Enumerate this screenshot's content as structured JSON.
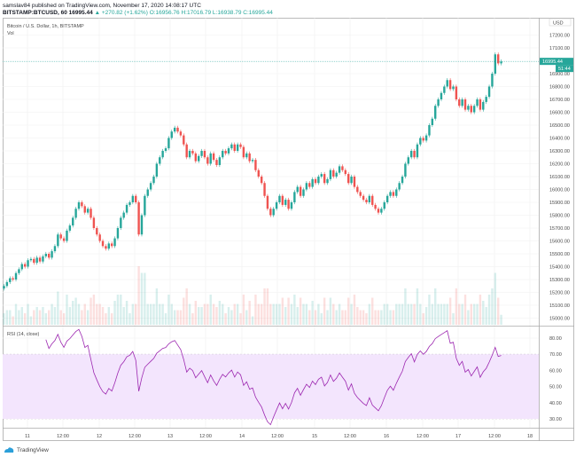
{
  "header": {
    "published": "samslav84 published on TradingView.com, November 17, 2020 14:08:17 UTC",
    "symbol": "BITSTAMP:BTCUSD, 60",
    "last": "16995.44",
    "change": "+270.82 (+1.62%)",
    "open": "O:16956.76",
    "high": "H:17016.79",
    "low": "L:16938.79",
    "close": "C:16995.44"
  },
  "pane_title": "Bitcoin / U.S. Dollar, 1h, BITSTAMP",
  "vol_label": "Vol",
  "rsi_label": "RSI (14, close)",
  "currency": "USD",
  "price_tag": "16995.44",
  "countdown_tag": "51:44",
  "footer_brand": "TradingView",
  "colors": {
    "up": "#26a69a",
    "down": "#ef5350",
    "rsi": "#9c27b0",
    "rsi_band": "#f3e5fd"
  },
  "chart_data": {
    "type": "candlestick",
    "interval": "1h",
    "price_ticks": [
      "17200.00",
      "17100.00",
      "16900.00",
      "16800.00",
      "16700.00",
      "16600.00",
      "16500.00",
      "16400.00",
      "16300.00",
      "16200.00",
      "16100.00",
      "16000.00",
      "15900.00",
      "15800.00",
      "15700.00",
      "15600.00",
      "15500.00",
      "15400.00",
      "15300.00",
      "15200.00",
      "15100.00",
      "15000.00"
    ],
    "rsi_ticks": [
      "80.00",
      "70.00",
      "60.00",
      "50.00",
      "40.00",
      "30.00"
    ],
    "rsi_band": [
      30,
      70
    ],
    "time_ticks": [
      "11",
      "12:00",
      "12",
      "12:00",
      "13",
      "12:00",
      "14",
      "12:00",
      "15",
      "12:00",
      "16",
      "12:00",
      "17",
      "12:00",
      "18"
    ],
    "closes": [
      15250,
      15280,
      15310,
      15300,
      15350,
      15380,
      15420,
      15400,
      15450,
      15460,
      15430,
      15470,
      15440,
      15480,
      15500,
      15470,
      15520,
      15560,
      15650,
      15620,
      15600,
      15680,
      15720,
      15780,
      15850,
      15900,
      15870,
      15820,
      15850,
      15780,
      15700,
      15650,
      15600,
      15560,
      15540,
      15580,
      15560,
      15620,
      15700,
      15780,
      15820,
      15880,
      15900,
      15950,
      15900,
      15650,
      15800,
      15950,
      16000,
      16050,
      16100,
      16200,
      16250,
      16300,
      16320,
      16400,
      16450,
      16480,
      16450,
      16420,
      16350,
      16250,
      16300,
      16280,
      16220,
      16260,
      16300,
      16250,
      16200,
      16280,
      16230,
      16190,
      16250,
      16300,
      16280,
      16320,
      16350,
      16300,
      16350,
      16330,
      16250,
      16280,
      16220,
      16230,
      16150,
      16100,
      16050,
      15950,
      15850,
      15800,
      15850,
      15900,
      15950,
      15880,
      15920,
      15850,
      15900,
      15980,
      16020,
      15950,
      16000,
      16050,
      16020,
      16080,
      16050,
      16100,
      16120,
      16050,
      16080,
      16150,
      16100,
      16130,
      16180,
      16150,
      16120,
      16050,
      16100,
      16020,
      15980,
      15950,
      15920,
      15900,
      15950,
      15880,
      15850,
      15820,
      15850,
      15900,
      15950,
      15980,
      15950,
      16000,
      16050,
      16100,
      16200,
      16250,
      16300,
      16250,
      16350,
      16400,
      16380,
      16420,
      16500,
      16550,
      16650,
      16700,
      16750,
      16800,
      16850,
      16780,
      16800,
      16700,
      16650,
      16700,
      16620,
      16650,
      16600,
      16650,
      16700,
      16620,
      16680,
      16720,
      16800,
      16900,
      17050,
      16980,
      16995
    ]
  }
}
